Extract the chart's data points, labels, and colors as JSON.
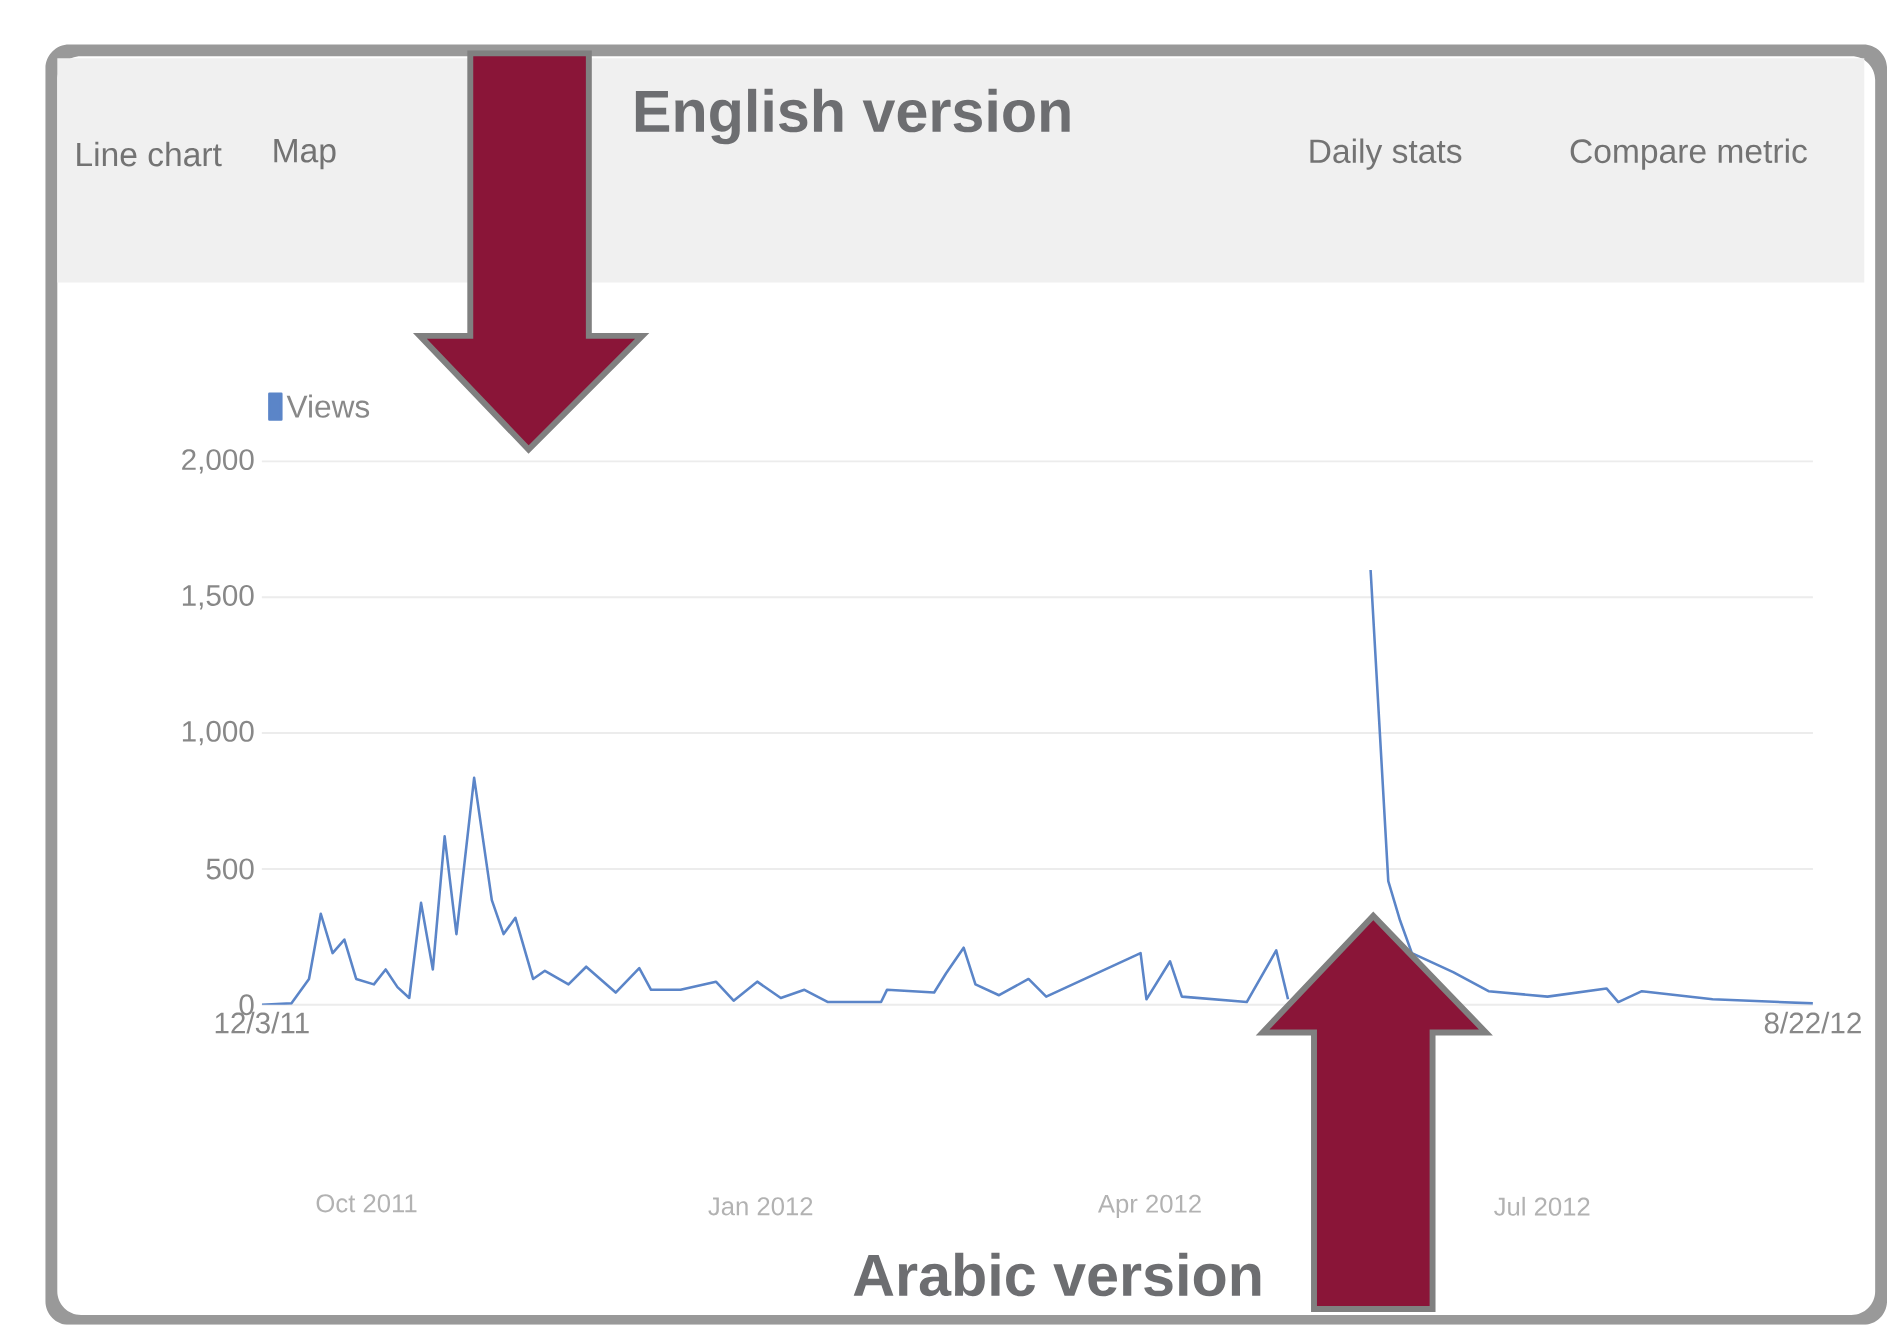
{
  "chart_data": {
    "type": "line",
    "x": [
      "2011-12-03",
      "2011-12-08",
      "2011-12-11",
      "2011-12-13",
      "2011-12-15",
      "2011-12-17",
      "2011-12-19",
      "2011-12-22",
      "2011-12-24",
      "2011-12-26",
      "2011-12-28",
      "2011-12-30",
      "2012-01-01",
      "2012-01-03",
      "2012-01-05",
      "2012-01-08",
      "2012-01-11",
      "2012-01-13",
      "2012-01-15",
      "2012-01-18",
      "2012-01-20",
      "2012-01-24",
      "2012-01-27",
      "2012-02-01",
      "2012-02-05",
      "2012-02-07",
      "2012-02-12",
      "2012-02-18",
      "2012-02-21",
      "2012-02-25",
      "2012-02-29",
      "2012-03-04",
      "2012-03-08",
      "2012-03-17",
      "2012-03-18",
      "2012-03-26",
      "2012-03-28",
      "2012-03-31",
      "2012-04-02",
      "2012-04-06",
      "2012-04-11",
      "2012-04-14",
      "2012-04-30",
      "2012-05-01",
      "2012-05-05",
      "2012-05-07",
      "2012-05-18",
      "2012-05-23",
      "2012-05-25",
      "2012-06-04",
      "2012-06-06",
      "2012-06-08",
      "2012-06-11",
      "2012-06-13",
      "2012-06-15",
      "2012-06-22",
      "2012-06-28",
      "2012-07-08",
      "2012-07-18",
      "2012-07-20",
      "2012-07-24",
      "2012-08-05",
      "2012-08-22"
    ],
    "series": [
      {
        "name": "Views",
        "color": "#5b85c8",
        "values": [
          0,
          5,
          95,
          335,
          190,
          240,
          95,
          75,
          130,
          65,
          25,
          375,
          130,
          620,
          260,
          835,
          385,
          260,
          320,
          95,
          125,
          75,
          140,
          45,
          135,
          55,
          55,
          85,
          15,
          85,
          25,
          55,
          10,
          10,
          55,
          45,
          115,
          210,
          75,
          35,
          95,
          30,
          190,
          20,
          160,
          30,
          10,
          200,
          20,
          null,
          null,
          1600,
          455,
          310,
          190,
          120,
          50,
          30,
          60,
          10,
          50,
          20,
          5
        ]
      }
    ],
    "xlim": [
      "2011-12-03",
      "2012-08-22"
    ],
    "xticks": [
      {
        "value": "2011-12-03",
        "label": "12/3/11"
      },
      {
        "value": "2012-08-22",
        "label": "8/22/12"
      }
    ],
    "ylim": [
      0,
      2000
    ],
    "yticks": [
      0,
      {
        "value": 500,
        "label": "500"
      },
      {
        "value": 1000,
        "label": "1,000"
      },
      {
        "value": 1500,
        "label": "1,500"
      },
      {
        "value": 2000,
        "label": "2,000"
      }
    ],
    "grid": "y",
    "legend": "top left",
    "annotations": [
      "English version",
      "Arabic version",
      "Line chart",
      "Map",
      "Daily stats",
      "Compare metric",
      "Oct 2011",
      "Jan 2012",
      "Apr 2012",
      "Jul 2012"
    ]
  }
}
